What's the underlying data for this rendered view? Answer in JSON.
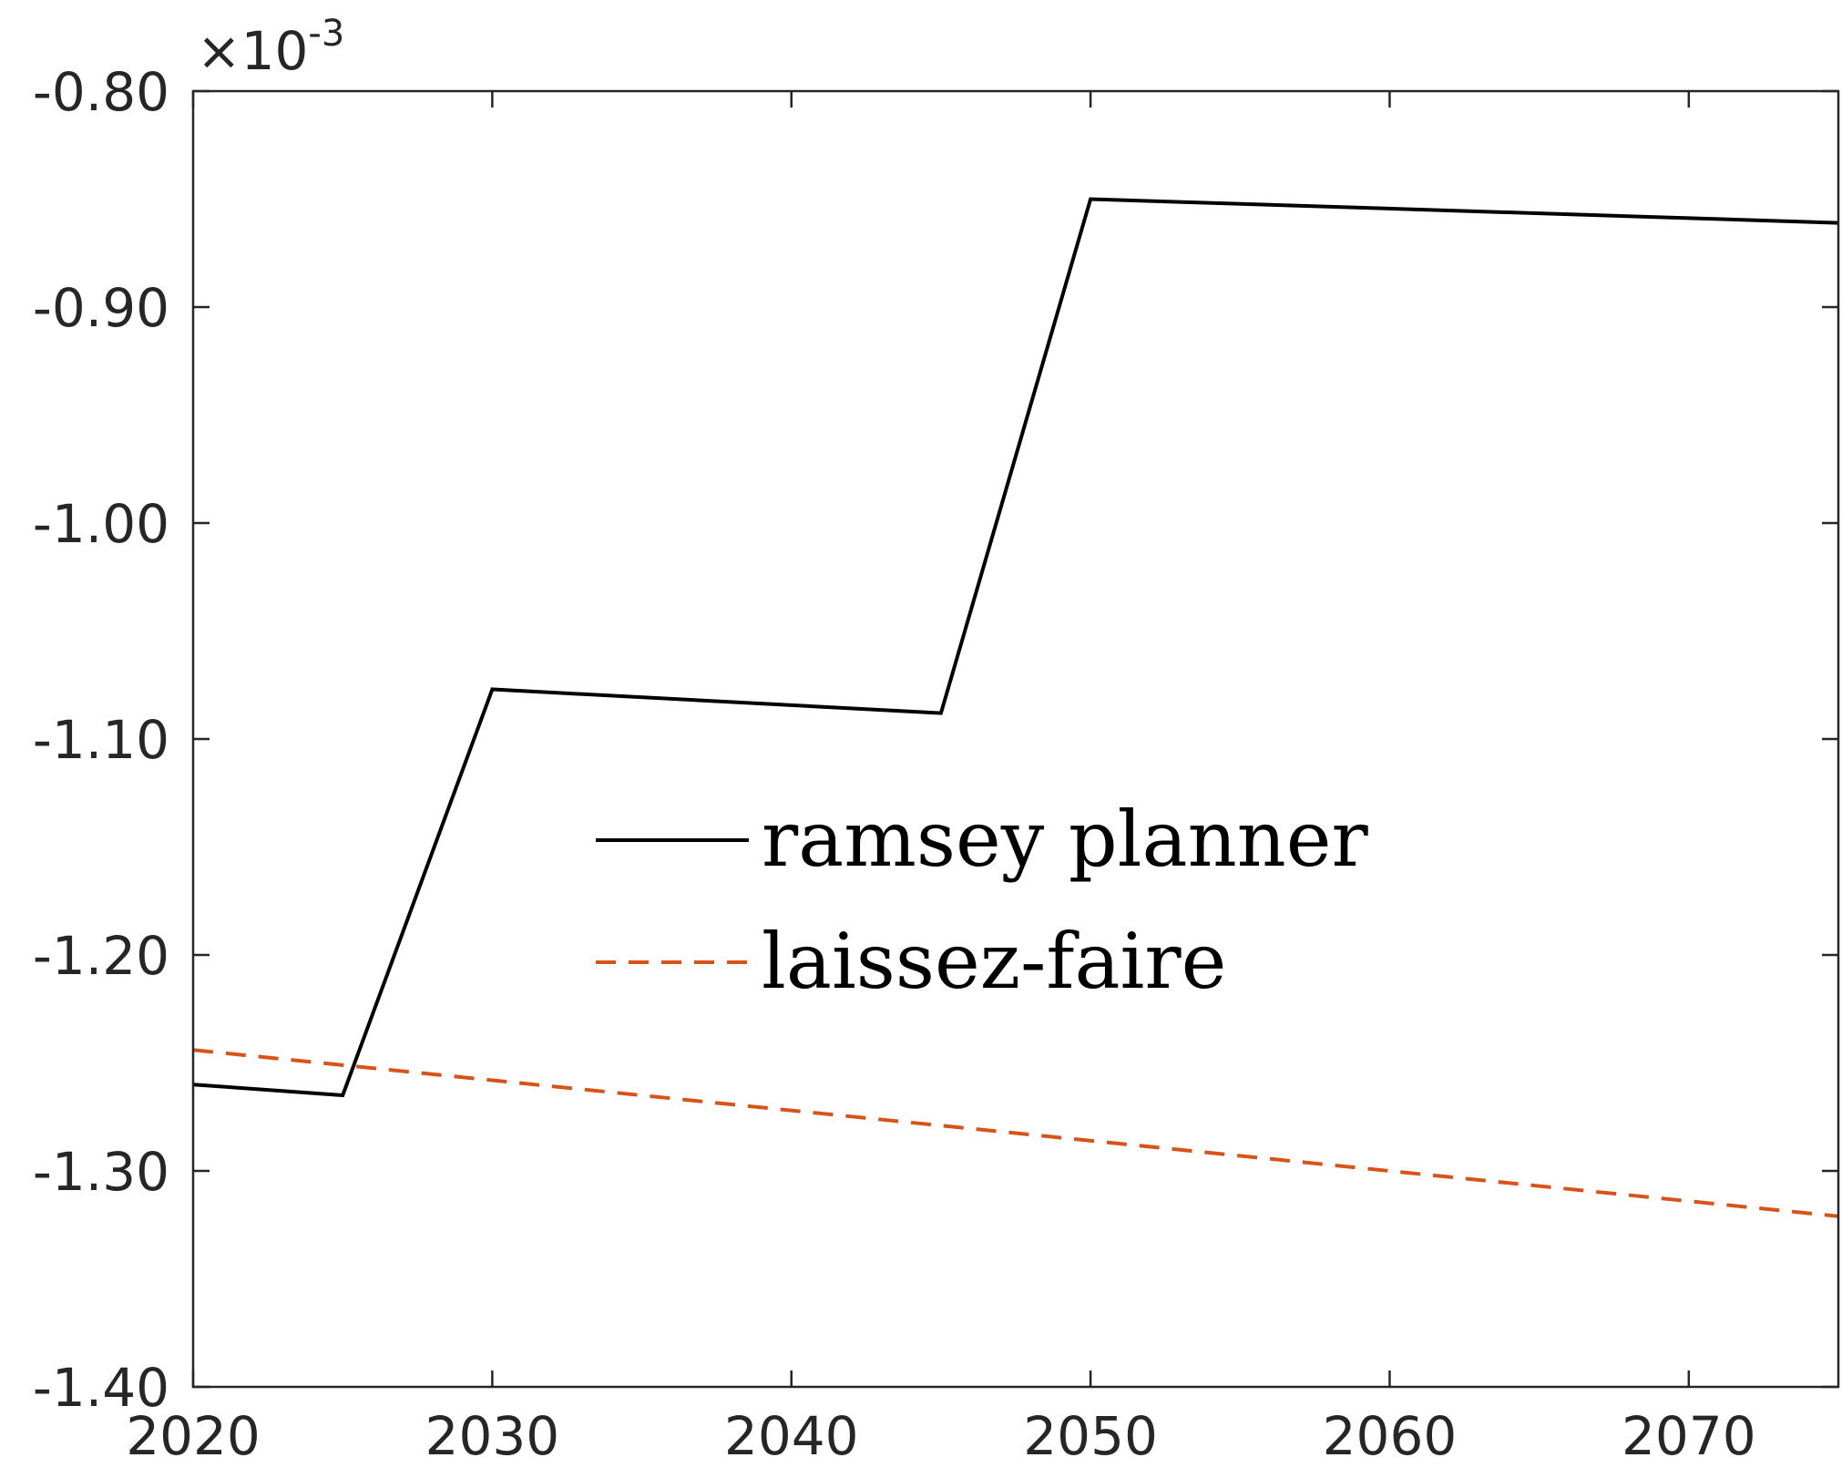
{
  "chart_data": {
    "type": "line",
    "title": "",
    "xlabel": "",
    "ylabel": "",
    "xlim": [
      2020,
      2075
    ],
    "ylim": [
      -1.4,
      -0.8
    ],
    "y_exponent_label": {
      "base": "×10",
      "power": "-3"
    },
    "xticks": [
      2020,
      2030,
      2040,
      2050,
      2060,
      2070
    ],
    "xtick_labels": [
      "2020",
      "2030",
      "2040",
      "2050",
      "2060",
      "2070"
    ],
    "yticks": [
      -1.4,
      -1.3,
      -1.2,
      -1.1,
      -1.0,
      -0.9,
      -0.8
    ],
    "ytick_labels": [
      "-1.40",
      "-1.30",
      "-1.20",
      "-1.10",
      "-1.00",
      "-0.90",
      "-0.80"
    ],
    "grid": false,
    "legend_position": "center",
    "series": [
      {
        "name": "ramsey planner",
        "color": "#000000",
        "dash": "solid",
        "x": [
          2020,
          2025,
          2030,
          2045,
          2050,
          2075
        ],
        "y": [
          -1.26,
          -1.265,
          -1.077,
          -1.088,
          -0.85,
          -0.861
        ]
      },
      {
        "name": "laissez-faire",
        "color": "#D95319",
        "dash": "dashed",
        "x": [
          2020,
          2075
        ],
        "y": [
          -1.244,
          -1.321
        ]
      }
    ]
  }
}
